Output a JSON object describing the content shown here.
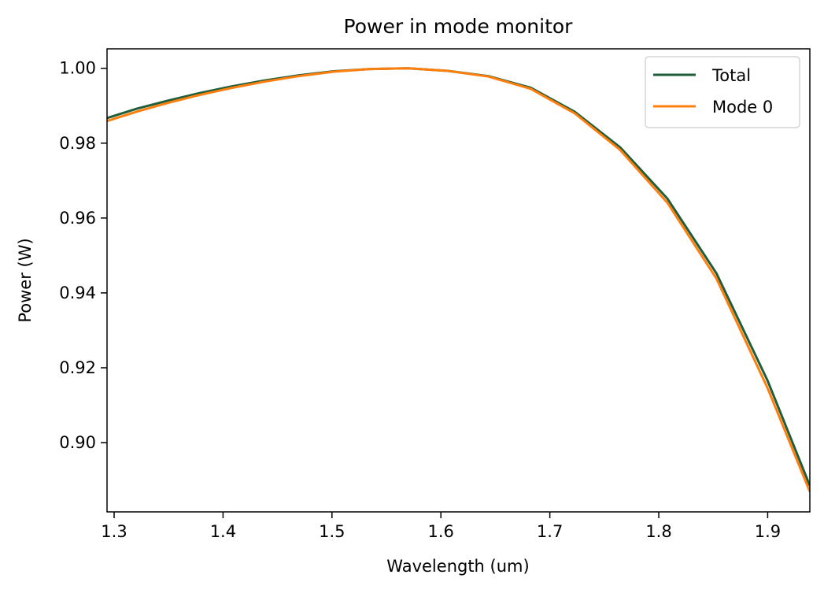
{
  "chart_data": {
    "type": "line",
    "title": "Power in mode monitor",
    "xlabel": "Wavelength (um)",
    "ylabel": "Power (W)",
    "xlim": [
      1.2935,
      1.9387
    ],
    "ylim": [
      0.8815,
      1.0052
    ],
    "xticks": [
      1.3,
      1.4,
      1.5,
      1.6,
      1.7,
      1.8,
      1.9
    ],
    "xtick_labels": [
      "1.3",
      "1.4",
      "1.5",
      "1.6",
      "1.7",
      "1.8",
      "1.9"
    ],
    "yticks": [
      0.9,
      0.92,
      0.94,
      0.96,
      0.98,
      1.0
    ],
    "ytick_labels": [
      "0.90",
      "0.92",
      "0.94",
      "0.96",
      "0.98",
      "1.00"
    ],
    "grid": false,
    "legend_position": "top-right",
    "series": [
      {
        "name": "Total",
        "color": "#1f5e3a",
        "x": [
          1.2935,
          1.3207,
          1.3486,
          1.3773,
          1.407,
          1.4375,
          1.4691,
          1.5017,
          1.5354,
          1.5702,
          1.6063,
          1.6437,
          1.6825,
          1.7227,
          1.7645,
          1.8079,
          1.853,
          1.9,
          1.9387
        ],
        "values": [
          0.9867,
          0.9892,
          0.9913,
          0.9933,
          0.9951,
          0.9967,
          0.9981,
          0.9992,
          0.9998,
          1.0,
          0.9993,
          0.9979,
          0.9948,
          0.9884,
          0.9789,
          0.9652,
          0.9452,
          0.9165,
          0.8885
        ]
      },
      {
        "name": "Mode 0",
        "color": "#ff7f0e",
        "x": [
          1.2935,
          1.3207,
          1.3486,
          1.3773,
          1.407,
          1.4375,
          1.4691,
          1.5017,
          1.5354,
          1.5702,
          1.6063,
          1.6437,
          1.6825,
          1.7227,
          1.7645,
          1.8079,
          1.853,
          1.9,
          1.9387
        ],
        "values": [
          0.9859,
          0.9884,
          0.9907,
          0.9928,
          0.9947,
          0.9964,
          0.9979,
          0.9991,
          0.9998,
          1.0,
          0.9993,
          0.9978,
          0.9945,
          0.988,
          0.9782,
          0.9641,
          0.9438,
          0.9145,
          0.8869
        ]
      }
    ]
  }
}
